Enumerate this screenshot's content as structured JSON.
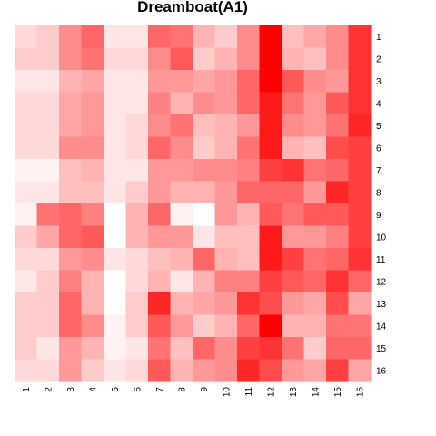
{
  "chart_data": {
    "type": "heatmap",
    "title": "Dreamboat(A1)",
    "xlabel": "",
    "ylabel": "",
    "x_labels": [
      "1",
      "2",
      "3",
      "4",
      "5",
      "6",
      "7",
      "8",
      "9",
      "10",
      "11",
      "12",
      "13",
      "14",
      "15",
      "16"
    ],
    "y_labels": [
      "1",
      "2",
      "3",
      "4",
      "5",
      "6",
      "7",
      "8",
      "9",
      "10",
      "11",
      "12",
      "13",
      "14",
      "15",
      "16"
    ],
    "value_range": [
      0,
      1
    ],
    "colors": {
      "low": "#ffffff",
      "high": "#ff0000"
    },
    "legend": "none",
    "grid": false,
    "values": [
      [
        0.15,
        0.2,
        0.45,
        0.6,
        0.1,
        0.1,
        0.6,
        0.55,
        0.3,
        0.2,
        0.45,
        1.0,
        0.25,
        0.35,
        0.45,
        0.8
      ],
      [
        0.2,
        0.2,
        0.45,
        0.55,
        0.15,
        0.15,
        0.45,
        0.65,
        0.2,
        0.3,
        0.45,
        1.0,
        0.3,
        0.25,
        0.45,
        0.8
      ],
      [
        0.1,
        0.1,
        0.3,
        0.35,
        0.1,
        0.1,
        0.4,
        0.4,
        0.35,
        0.4,
        0.6,
        1.0,
        0.65,
        0.45,
        0.4,
        0.8
      ],
      [
        0.15,
        0.15,
        0.35,
        0.4,
        0.1,
        0.1,
        0.5,
        0.3,
        0.45,
        0.4,
        0.6,
        0.9,
        0.55,
        0.4,
        0.65,
        0.8
      ],
      [
        0.15,
        0.15,
        0.35,
        0.4,
        0.1,
        0.15,
        0.45,
        0.55,
        0.25,
        0.3,
        0.4,
        0.9,
        0.45,
        0.4,
        0.55,
        0.85
      ],
      [
        0.15,
        0.15,
        0.45,
        0.45,
        0.1,
        0.15,
        0.6,
        0.45,
        0.2,
        0.3,
        0.55,
        0.9,
        0.3,
        0.25,
        0.7,
        0.75
      ],
      [
        0.05,
        0.05,
        0.25,
        0.3,
        0.1,
        0.1,
        0.4,
        0.4,
        0.45,
        0.45,
        0.5,
        0.75,
        0.8,
        0.55,
        0.6,
        0.75
      ],
      [
        0.1,
        0.1,
        0.25,
        0.25,
        0.1,
        0.2,
        0.4,
        0.3,
        0.3,
        0.4,
        0.6,
        0.6,
        0.6,
        0.4,
        0.85,
        0.75
      ],
      [
        0.05,
        0.55,
        0.6,
        0.5,
        0.0,
        0.3,
        0.6,
        0.05,
        0.0,
        0.4,
        0.3,
        0.65,
        0.55,
        0.65,
        0.65,
        0.75
      ],
      [
        0.2,
        0.35,
        0.6,
        0.65,
        0.0,
        0.3,
        0.4,
        0.4,
        0.1,
        0.25,
        0.25,
        0.9,
        0.4,
        0.4,
        0.5,
        0.75
      ],
      [
        0.15,
        0.15,
        0.4,
        0.45,
        0.1,
        0.15,
        0.25,
        0.3,
        0.6,
        0.3,
        0.25,
        0.9,
        0.75,
        0.55,
        0.6,
        0.8
      ],
      [
        0.1,
        0.2,
        0.5,
        0.3,
        0.0,
        0.15,
        0.3,
        0.1,
        0.3,
        0.5,
        0.5,
        0.75,
        0.65,
        0.6,
        0.8,
        0.6
      ],
      [
        0.2,
        0.2,
        0.6,
        0.3,
        0.0,
        0.2,
        0.85,
        0.3,
        0.35,
        0.4,
        0.8,
        0.7,
        0.4,
        0.35,
        0.7,
        0.35
      ],
      [
        0.2,
        0.2,
        0.6,
        0.45,
        0.05,
        0.2,
        0.65,
        0.4,
        0.2,
        0.3,
        0.6,
        1.0,
        0.3,
        0.3,
        0.55,
        0.55
      ],
      [
        0.2,
        0.1,
        0.4,
        0.3,
        0.05,
        0.1,
        0.55,
        0.25,
        0.6,
        0.45,
        0.75,
        0.8,
        0.55,
        0.2,
        0.6,
        0.6
      ],
      [
        0.15,
        0.15,
        0.4,
        0.2,
        0.1,
        0.15,
        0.65,
        0.3,
        0.4,
        0.45,
        0.85,
        0.7,
        0.4,
        0.35,
        0.75,
        0.35
      ]
    ]
  }
}
